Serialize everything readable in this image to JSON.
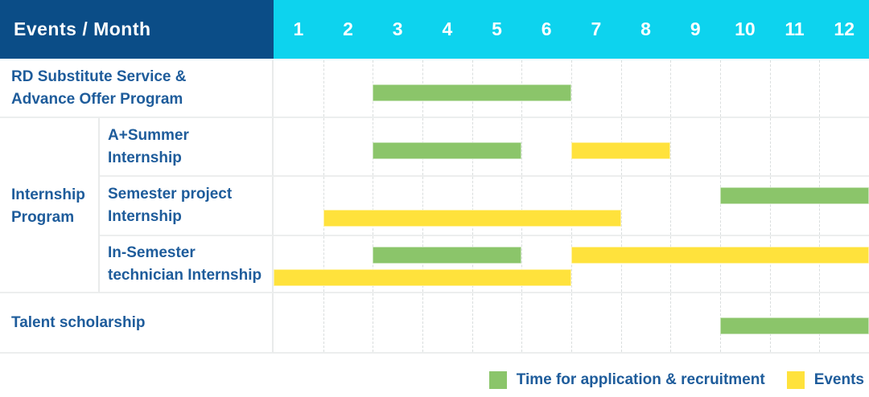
{
  "header": {
    "title": "Events / Month",
    "months": [
      "1",
      "2",
      "3",
      "4",
      "5",
      "6",
      "7",
      "8",
      "9",
      "10",
      "11",
      "12"
    ]
  },
  "colors": {
    "header_bg": "#0B4D87",
    "months_bg": "#0DD3EE",
    "application_bar": "#8BC56A",
    "events_bar": "#FFE23C",
    "label_text": "#1E5C9B",
    "header_text": "#FFFFFF"
  },
  "chart_data": {
    "type": "bar",
    "subtype": "gantt-schedule",
    "title": "Events / Month",
    "x_axis": {
      "label": "Month",
      "categories": [
        "1",
        "2",
        "3",
        "4",
        "5",
        "6",
        "7",
        "8",
        "9",
        "10",
        "11",
        "12"
      ],
      "range": [
        1,
        12
      ]
    },
    "legend_position": "bottom-right",
    "grid": "vertical-dashed",
    "rows": [
      {
        "group": "",
        "label": "RD Substitute Service & Advance Offer Program",
        "label_lines": [
          "RD Substitute Service &",
          "Advance Offer Program"
        ],
        "bars": [
          {
            "series": "Time for application & recruitment",
            "start_month": 3,
            "end_month": 6,
            "lane": "single"
          }
        ]
      },
      {
        "group": "Internship Program",
        "label": "A+Summer Internship",
        "label_lines": [
          "A+Summer",
          "Internship"
        ],
        "bars": [
          {
            "series": "Time for application & recruitment",
            "start_month": 3,
            "end_month": 5,
            "lane": "single"
          },
          {
            "series": "Events",
            "start_month": 7,
            "end_month": 8,
            "lane": "single"
          }
        ]
      },
      {
        "group": "Internship Program",
        "label": "Semester project Internship",
        "label_lines": [
          "Semester project",
          "Internship"
        ],
        "bars": [
          {
            "series": "Time for application & recruitment",
            "start_month": 10,
            "end_month": 12,
            "lane": "top"
          },
          {
            "series": "Events",
            "start_month": 2,
            "end_month": 7,
            "lane": "bottom"
          }
        ]
      },
      {
        "group": "Internship Program",
        "label": "In-Semester technician Internship",
        "label_lines": [
          "In-Semester",
          "technician Internship"
        ],
        "bars": [
          {
            "series": "Time for application & recruitment",
            "start_month": 3,
            "end_month": 5,
            "lane": "top"
          },
          {
            "series": "Events",
            "start_month": 7,
            "end_month": 12,
            "lane": "top"
          },
          {
            "series": "Events",
            "start_month": 1,
            "end_month": 6,
            "lane": "bottom"
          }
        ]
      },
      {
        "group": "",
        "label": "Talent scholarship",
        "label_lines": [
          "Talent scholarship"
        ],
        "bars": [
          {
            "series": "Time for application & recruitment",
            "start_month": 10,
            "end_month": 12,
            "lane": "single"
          }
        ]
      }
    ],
    "legend": [
      {
        "kind": "application",
        "label": "Time for application & recruitment",
        "color": "#8BC56A"
      },
      {
        "kind": "events",
        "label": "Events",
        "color": "#FFE23C"
      }
    ]
  }
}
